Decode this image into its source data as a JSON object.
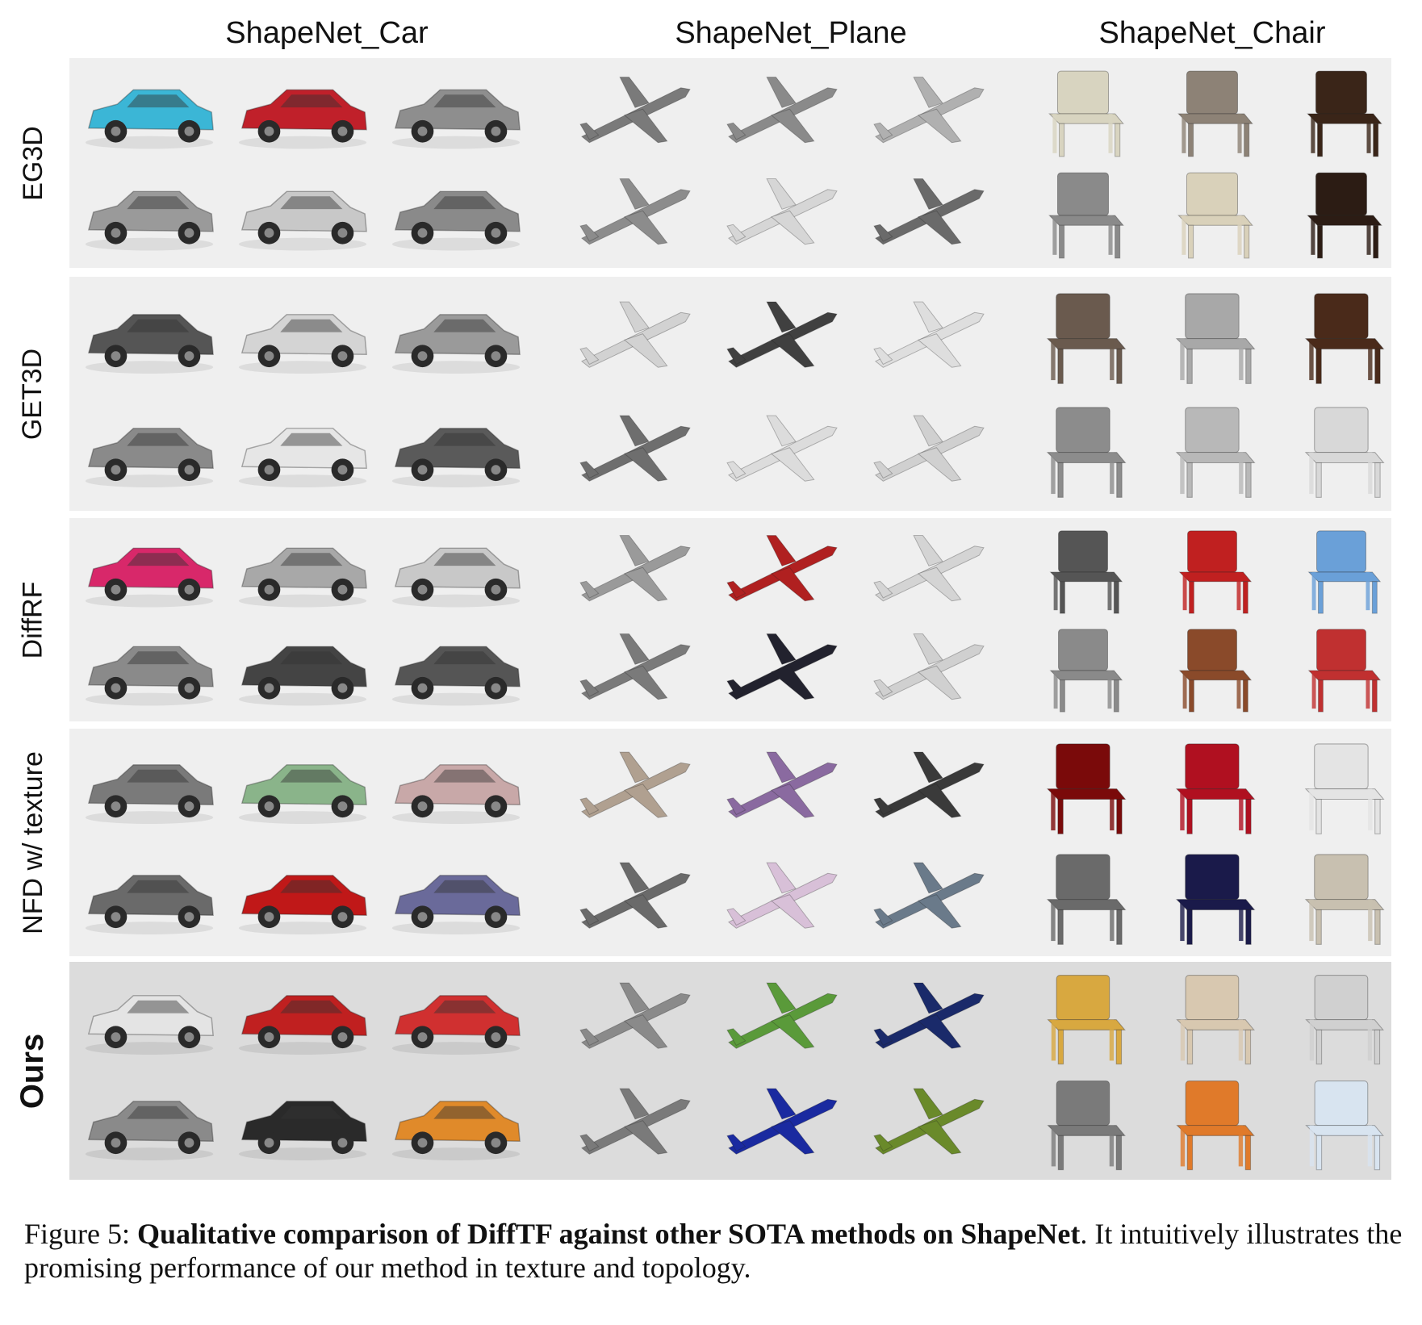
{
  "columns": [
    "ShapeNet_Car",
    "ShapeNet_Plane",
    "ShapeNet_Chair"
  ],
  "rows": [
    {
      "label": "EG3D",
      "colors": {
        "car": [
          "#3bb6d6",
          "#c0202a",
          "#8e8e8e",
          "#9a9a9a",
          "#c8c8c8",
          "#8a8a8a"
        ],
        "plane": [
          "#7a7a7a",
          "#8a8a8a",
          "#b0b0b0",
          "#8c8c8c",
          "#d6d6d6",
          "#6a6a6a"
        ],
        "chair": [
          "#d8d4c0",
          "#8d8276",
          "#3a2518",
          "#8a8a8a",
          "#d9d1ba",
          "#2c1c14"
        ]
      }
    },
    {
      "label": "GET3D",
      "colors": {
        "car": [
          "#555555",
          "#d4d4d4",
          "#9a9a9a",
          "#8a8a8a",
          "#e6e6e6",
          "#5a5a5a"
        ],
        "plane": [
          "#d2d2d2",
          "#404040",
          "#dedede",
          "#6e6e6e",
          "#dcdcdc",
          "#d0d0d0"
        ],
        "chair": [
          "#6a5a4e",
          "#a8a8a8",
          "#4a2a1a",
          "#8c8c8c",
          "#b8b8b8",
          "#d8d8d8"
        ]
      }
    },
    {
      "label": "DiffRF",
      "colors": {
        "car": [
          "#d8286a",
          "#a8a8a8",
          "#c8c8c8",
          "#8a8a8a",
          "#444444",
          "#555555"
        ],
        "plane": [
          "#9a9a9a",
          "#b02020",
          "#d4d4d4",
          "#7a7a7a",
          "#22222e",
          "#d0d0d0"
        ],
        "chair": [
          "#555555",
          "#c02020",
          "#6aa0d8",
          "#8a8a8a",
          "#8a4a2a",
          "#c03030"
        ]
      }
    },
    {
      "label": "NFD w/ texture",
      "colors": {
        "car": [
          "#7a7a7a",
          "#8ab48a",
          "#c8a8a8",
          "#6a6a6a",
          "#c01818",
          "#6a6a9a"
        ],
        "plane": [
          "#b0a090",
          "#8a6aa0",
          "#3a3a3a",
          "#6a6a6a",
          "#d8c0d8",
          "#6a7a8a"
        ],
        "chair": [
          "#7a0a0a",
          "#b01020",
          "#e4e4e4",
          "#6a6a6a",
          "#1a1a4a",
          "#c8c0b0"
        ]
      }
    },
    {
      "label": "Ours",
      "colors": {
        "car": [
          "#e4e4e4",
          "#c02020",
          "#d03030",
          "#8a8a8a",
          "#2a2a2a",
          "#e08a2a"
        ],
        "plane": [
          "#8a8a8a",
          "#5a9a3a",
          "#1a2a6a",
          "#7a7a7a",
          "#1a2aa0",
          "#6a8a2a"
        ],
        "chair": [
          "#d8a840",
          "#d8c8b0",
          "#d0d0d0",
          "#7a7a7a",
          "#e07a2a",
          "#d8e4f0"
        ]
      }
    }
  ],
  "caption": {
    "prefix": "Figure 5: ",
    "bold": "Qualitative comparison of DiffTF against other SOTA methods on ShapeNet",
    "suffix": ".  It intuitively illustrates the promising performance of our method in texture and topology."
  }
}
